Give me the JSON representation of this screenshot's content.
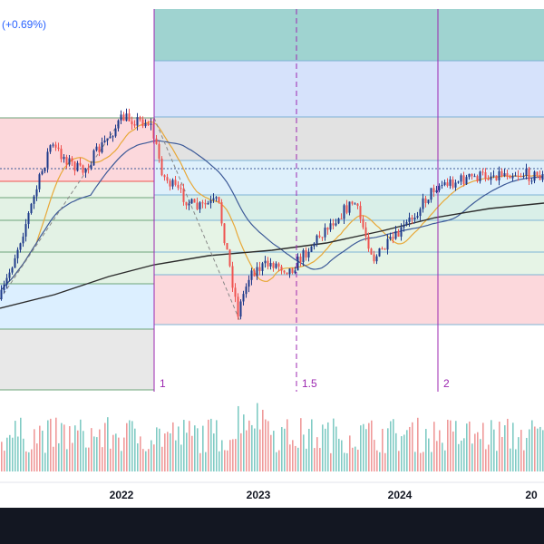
{
  "legend": {
    "change": "(+0.69%)"
  },
  "chart_data": {
    "type": "candlestick",
    "x_ticks": [
      "2022",
      "2023",
      "2024",
      "20"
    ],
    "time_cycles": [
      "1",
      "1.5",
      "2"
    ],
    "colors": {
      "up": "#1e3a8a",
      "down": "#ef5350",
      "ma_fast": "#e8a838",
      "ma_mid": "#3d5a98",
      "ma_slow": "#2c2c2c",
      "cycle": "#9c27b0",
      "volume_up": "#80cbc4",
      "volume_down": "#ef9a9a"
    }
  }
}
